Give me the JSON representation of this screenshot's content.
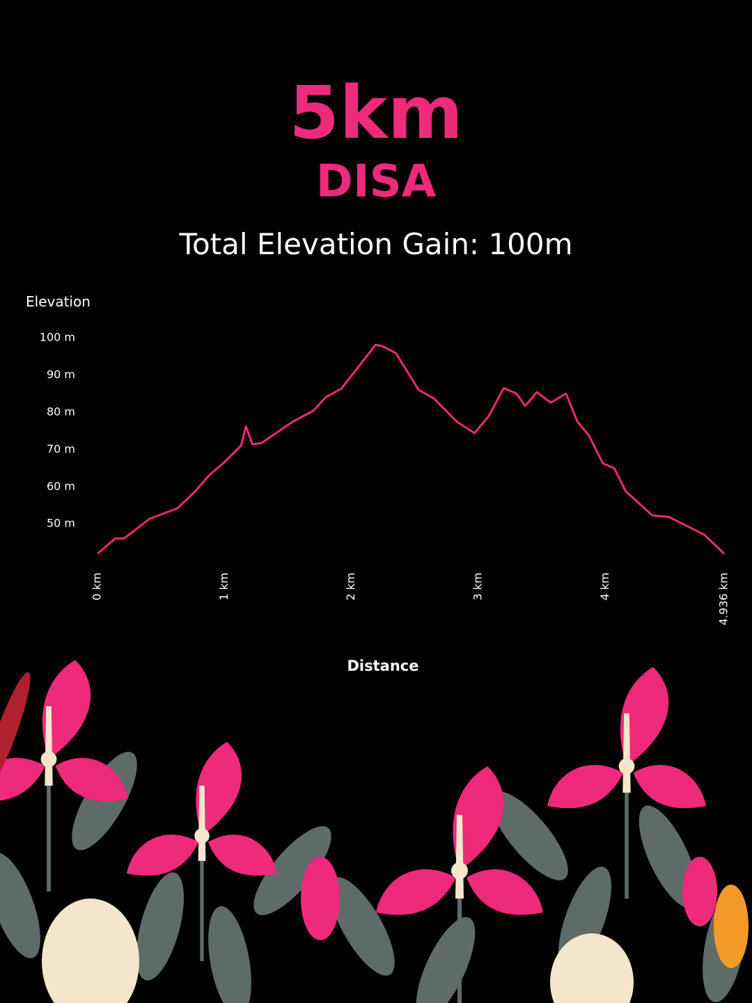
{
  "chart_data": {
    "type": "line",
    "title": "5km",
    "subtitle": "DISA",
    "annotation": "Total Elevation Gain: 100m",
    "y_label": "Elevation",
    "x_label": "Distance",
    "color": "#ee2a7b",
    "grid": false,
    "x": [
      0,
      0.14,
      0.21,
      0.41,
      0.63,
      0.77,
      0.88,
      0.99,
      1.13,
      1.17,
      1.22,
      1.29,
      1.54,
      1.7,
      1.8,
      1.92,
      2.19,
      2.24,
      2.35,
      2.53,
      2.65,
      2.83,
      2.97,
      3.08,
      3.2,
      3.3,
      3.37,
      3.46,
      3.57,
      3.69,
      3.78,
      3.87,
      3.98,
      4.07,
      4.16,
      4.21,
      4.37,
      4.5,
      4.78,
      4.936
    ],
    "series": [
      {
        "name": "Elevation",
        "color": "#ee2a7b",
        "values": [
          42,
          46.1,
          46.1,
          51.4,
          54.2,
          58.8,
          63.1,
          66.3,
          71,
          76.2,
          71.4,
          71.7,
          77.5,
          80.4,
          84.1,
          86.3,
          98.1,
          97.8,
          95.9,
          86,
          83.7,
          77.5,
          74.4,
          78.9,
          86.5,
          85,
          81.7,
          85.4,
          82.6,
          85,
          77.5,
          73.8,
          66.3,
          65,
          58.8,
          57.3,
          52.3,
          51.9,
          47.1,
          42
        ]
      }
    ],
    "xlim": [
      0,
      4.936
    ],
    "xticks": [
      {
        "value": 0,
        "label": "0 km"
      },
      {
        "value": 1,
        "label": "1 km"
      },
      {
        "value": 2,
        "label": "2 km"
      },
      {
        "value": 3,
        "label": "3 km"
      },
      {
        "value": 4,
        "label": "4 km"
      },
      {
        "value": 4.936,
        "label": "4.936 km"
      }
    ],
    "ylim": [
      42,
      100
    ],
    "yticks": [
      {
        "value": 50,
        "label": "50 m"
      },
      {
        "value": 60,
        "label": "60 m"
      },
      {
        "value": 70,
        "label": "70 m"
      },
      {
        "value": 80,
        "label": "80 m"
      },
      {
        "value": 90,
        "label": "90 m"
      },
      {
        "value": 100,
        "label": "100 m"
      }
    ]
  }
}
